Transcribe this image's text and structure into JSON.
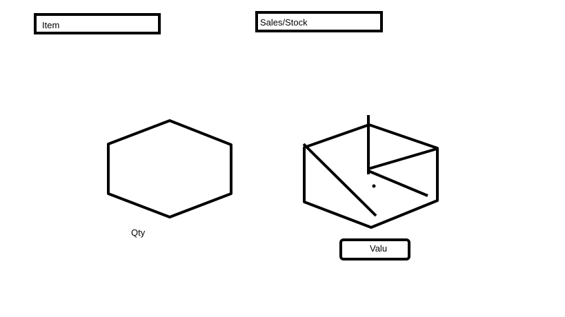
{
  "fields": {
    "item": "Item",
    "sales_stock": "Sales/Stock"
  },
  "labels": {
    "qty": "Qty"
  },
  "buttons": {
    "valu": "Valu"
  },
  "shapes": {
    "left": "hexagon",
    "right": "hexagon-pie"
  }
}
